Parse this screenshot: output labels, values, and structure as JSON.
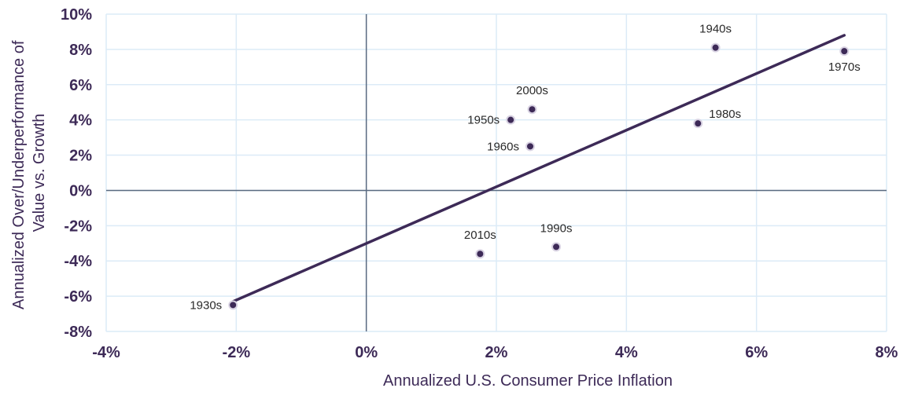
{
  "chart_data": {
    "type": "scatter",
    "title": "",
    "xlabel": "Annualized U.S. Consumer Price Inflation",
    "ylabel_lines": [
      "Annualized Over/Underperformance of",
      "Value vs. Growth"
    ],
    "xlim": [
      -4,
      8
    ],
    "ylim": [
      -8,
      10
    ],
    "x_ticks": [
      -4,
      -2,
      0,
      2,
      4,
      6,
      8
    ],
    "y_ticks": [
      -8,
      -6,
      -4,
      -2,
      0,
      2,
      4,
      6,
      8,
      10
    ],
    "x_tick_labels": [
      "-4%",
      "-2%",
      "0%",
      "2%",
      "4%",
      "6%",
      "8%"
    ],
    "y_tick_labels": [
      "-8%",
      "-6%",
      "-4%",
      "-2%",
      "0%",
      "2%",
      "4%",
      "6%",
      "8%",
      "10%"
    ],
    "grid": true,
    "series": [
      {
        "points": [
          {
            "label": "1930s",
            "x": -2.05,
            "y": -6.5,
            "label_pos": "left"
          },
          {
            "label": "1940s",
            "x": 5.37,
            "y": 8.1,
            "label_pos": "above"
          },
          {
            "label": "1950s",
            "x": 2.22,
            "y": 4.0,
            "label_pos": "left"
          },
          {
            "label": "1960s",
            "x": 2.52,
            "y": 2.5,
            "label_pos": "left"
          },
          {
            "label": "1970s",
            "x": 7.35,
            "y": 7.9,
            "label_pos": "below"
          },
          {
            "label": "1980s",
            "x": 5.1,
            "y": 3.8,
            "label_pos": "right-above"
          },
          {
            "label": "1990s",
            "x": 2.92,
            "y": -3.2,
            "label_pos": "above"
          },
          {
            "label": "2000s",
            "x": 2.55,
            "y": 4.6,
            "label_pos": "above"
          },
          {
            "label": "2010s",
            "x": 1.75,
            "y": -3.6,
            "label_pos": "above"
          }
        ]
      }
    ],
    "trendline": {
      "x_start": -2.05,
      "y_start": -6.3,
      "x_end": 7.35,
      "y_end": 8.8
    },
    "colors": {
      "point": "#3d2a57",
      "point_stroke": "#d8d2e2",
      "trendline": "#3d2a57",
      "grid": "#dcebf7",
      "zero_axis": "#5a6a80",
      "text": "#3d2a57"
    }
  }
}
